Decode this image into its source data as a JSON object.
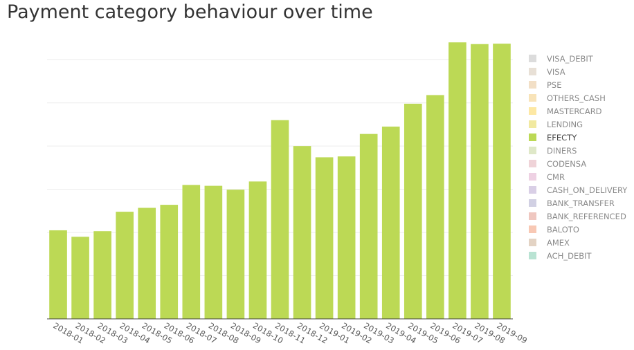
{
  "title": "Payment category behaviour over time",
  "legend": {
    "items": [
      {
        "label": "VISA_DEBIT",
        "color": "#dcdcdc",
        "active": false
      },
      {
        "label": "VISA",
        "color": "#e8e0d6",
        "active": false
      },
      {
        "label": "PSE",
        "color": "#f2dfc6",
        "active": false
      },
      {
        "label": "OTHERS_CASH",
        "color": "#f8e3b8",
        "active": false
      },
      {
        "label": "MASTERCARD",
        "color": "#fde8a4",
        "active": false
      },
      {
        "label": "LENDING",
        "color": "#f1e9a0",
        "active": false
      },
      {
        "label": "EFECTY",
        "color": "#bcd955",
        "active": true
      },
      {
        "label": "DINERS",
        "color": "#dfe8c8",
        "active": false
      },
      {
        "label": "CODENSA",
        "color": "#efd3d8",
        "active": false
      },
      {
        "label": "CMR",
        "color": "#eed1e3",
        "active": false
      },
      {
        "label": "CASH_ON_DELIVERY",
        "color": "#d9cfe6",
        "active": false
      },
      {
        "label": "BANK_TRANSFER",
        "color": "#d1d0e3",
        "active": false
      },
      {
        "label": "BANK_REFERENCED",
        "color": "#efc7c0",
        "active": false
      },
      {
        "label": "BALOTO",
        "color": "#f8c8b4",
        "active": false
      },
      {
        "label": "AMEX",
        "color": "#e3d3c4",
        "active": false
      },
      {
        "label": "ACH_DEBIT",
        "color": "#b9e3d3",
        "active": false
      }
    ]
  },
  "chart_data": {
    "type": "bar",
    "title": "Payment category behaviour over time",
    "categories": [
      "2018-01",
      "2018-02",
      "2018-03",
      "2018-04",
      "2018-05",
      "2018-06",
      "2018-07",
      "2018-08",
      "2018-09",
      "2018-10",
      "2018-11",
      "2018-12",
      "2019-01",
      "2019-02",
      "2019-03",
      "2019-04",
      "2019-05",
      "2019-06",
      "2019-07",
      "2019-08",
      "2019-09"
    ],
    "series": [
      {
        "name": "EFECTY",
        "color": "#bcd955",
        "values": [
          2.05,
          1.9,
          2.03,
          2.48,
          2.57,
          2.64,
          3.1,
          3.08,
          2.99,
          3.18,
          4.6,
          4.0,
          3.74,
          3.76,
          4.28,
          4.45,
          4.98,
          5.18,
          6.4,
          6.36,
          6.37
        ]
      }
    ],
    "ylim": [
      0,
      6.5
    ],
    "y_ticks": [
      0,
      1,
      2,
      3,
      4,
      5,
      6
    ],
    "y_tick_labels_visible": false,
    "grid": true,
    "legend": "right"
  }
}
